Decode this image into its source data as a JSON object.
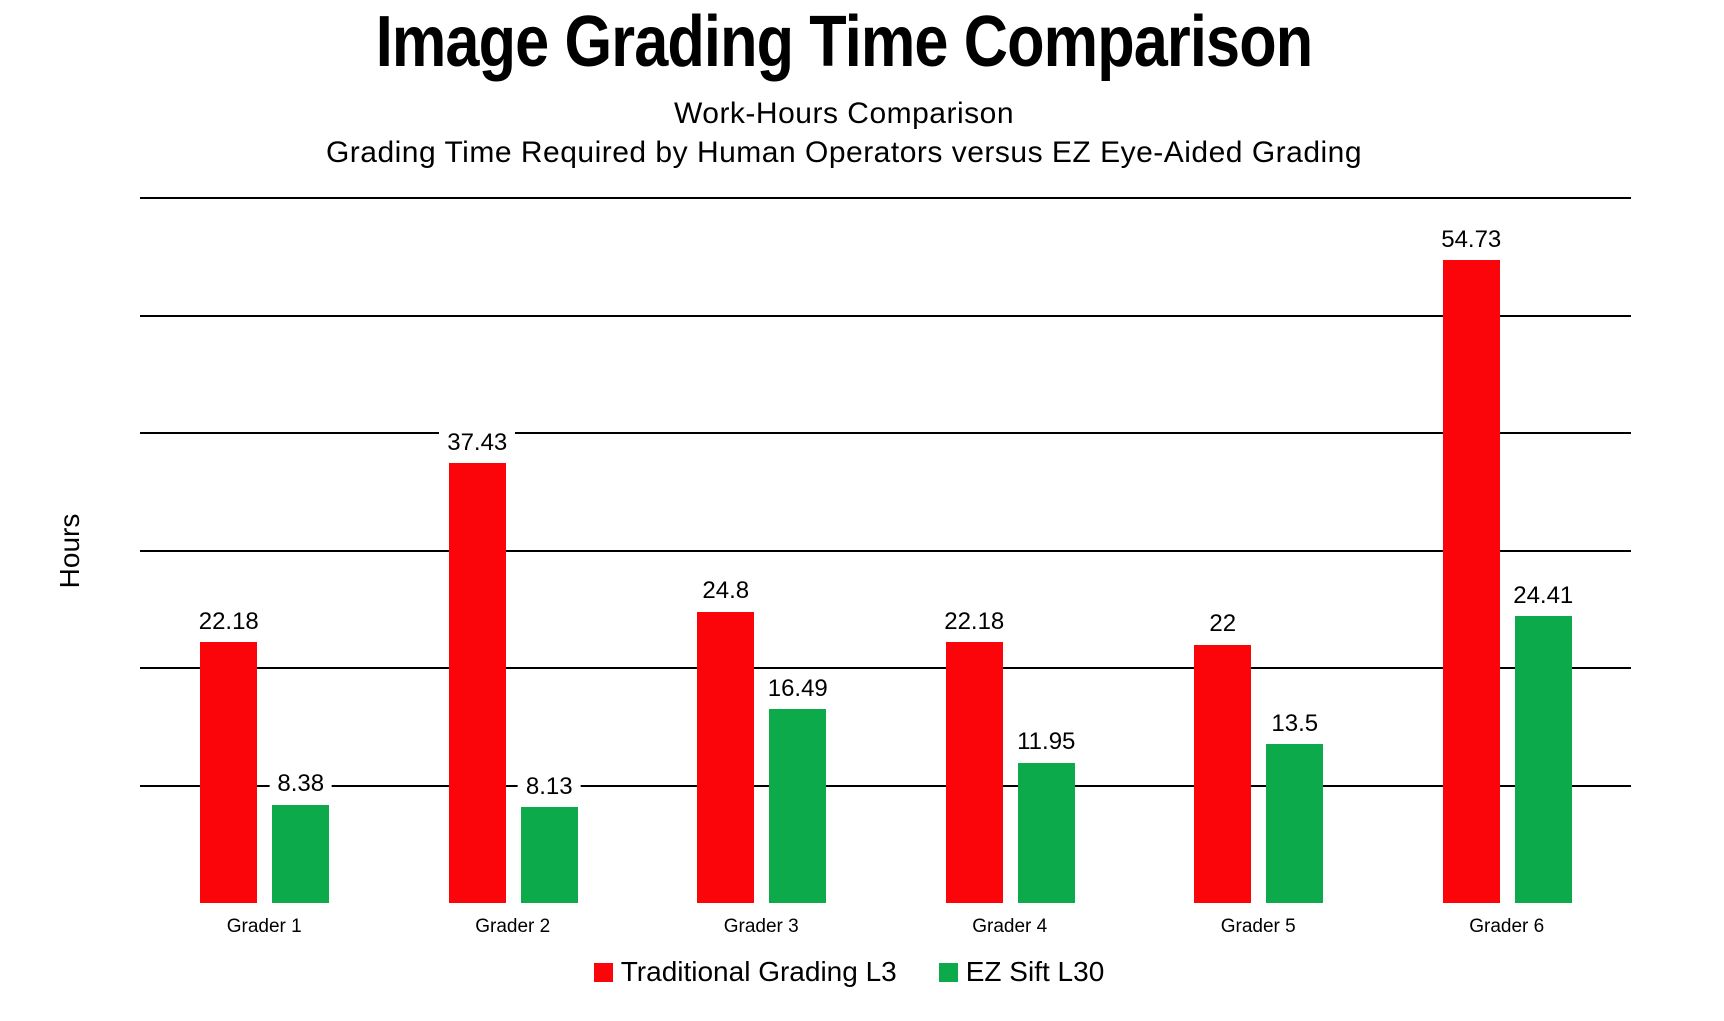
{
  "page": {
    "background": "#ffffff",
    "text_color": "#000000",
    "grid_color": "#000000"
  },
  "header": {
    "title": "Image Grading Time Comparison",
    "subtitle1": "Work-Hours Comparison",
    "subtitle2": "Grading Time Required by Human Operators versus EZ Eye-Aided Grading"
  },
  "chart_data": {
    "type": "bar",
    "title": "Image Grading Time Comparison",
    "subtitle": [
      "Work-Hours Comparison",
      "Grading Time Required by Human Operators versus EZ Eye-Aided Grading"
    ],
    "xlabel": "",
    "ylabel": "Hours",
    "ylim": [
      0,
      60
    ],
    "y_tick_labels_shown": false,
    "gridlines": [
      10,
      20,
      30,
      40,
      50,
      60
    ],
    "grid": "horizontal",
    "legend_position": "bottom",
    "categories": [
      "Grader 1",
      "Grader 2",
      "Grader 3",
      "Grader 4",
      "Grader 5",
      "Grader 6"
    ],
    "series": [
      {
        "name": "Traditional Grading L3",
        "color": "#FB050A",
        "values": [
          22.18,
          37.43,
          24.8,
          22.18,
          22,
          54.73
        ],
        "labels": [
          "22.18",
          "37.43",
          "24.8",
          "22.18",
          "22",
          "54.73"
        ]
      },
      {
        "name": "EZ Sift L30",
        "color": "#0CAA4B",
        "values": [
          8.38,
          8.13,
          16.49,
          11.95,
          13.5,
          24.41
        ],
        "labels": [
          "8.38",
          "8.13",
          "16.49",
          "11.95",
          "13.5",
          "24.41"
        ]
      }
    ]
  }
}
